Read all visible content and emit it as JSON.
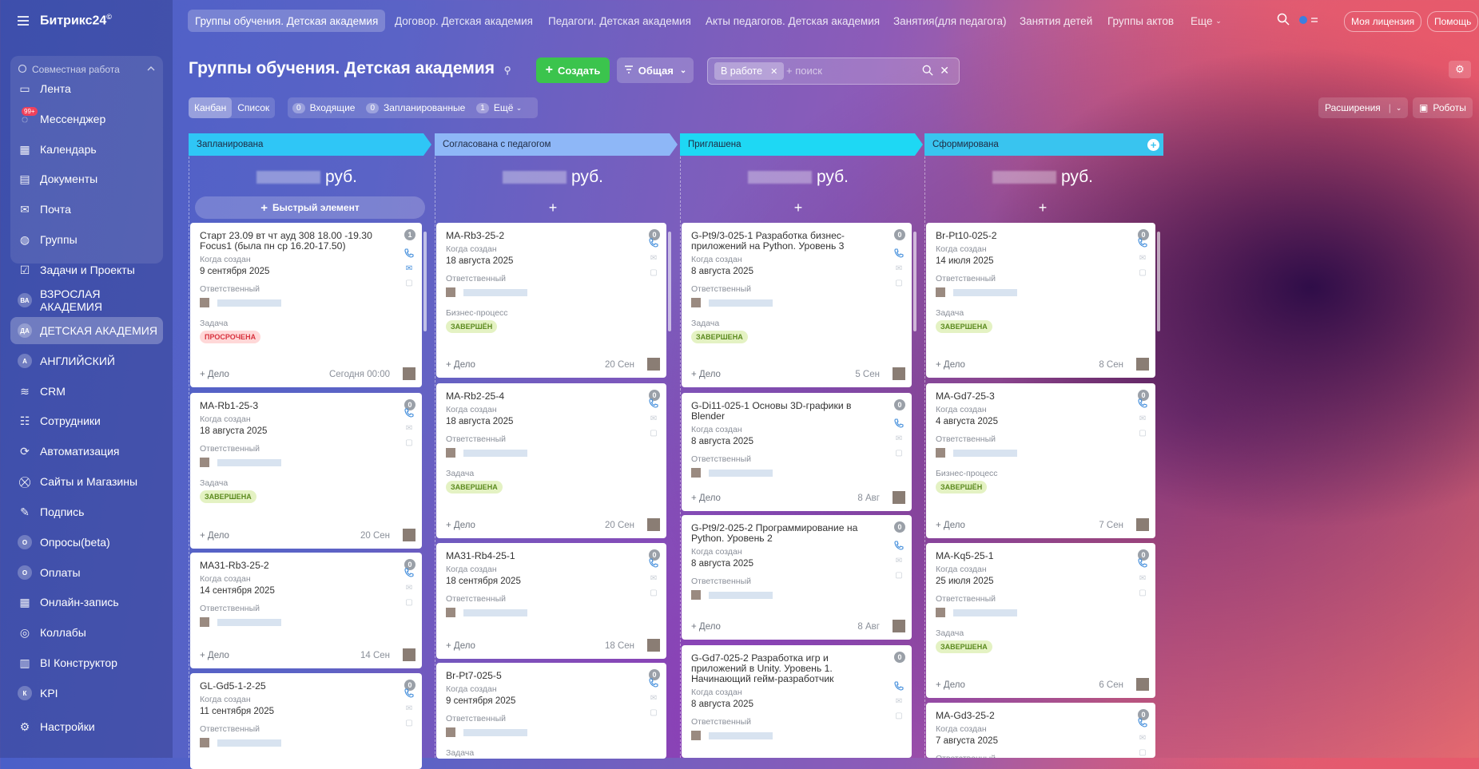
{
  "app": {
    "name": "Битрикс24",
    "mark": "©"
  },
  "sidebar": {
    "group_title": "Совместная работа",
    "items": [
      {
        "label": "Лента",
        "icon": "feed-icon"
      },
      {
        "label": "Мессенджер",
        "icon": "messenger-icon",
        "counter": "99+"
      },
      {
        "label": "Календарь",
        "icon": "calendar-icon"
      },
      {
        "label": "Документы",
        "icon": "documents-icon"
      },
      {
        "label": "Почта",
        "icon": "mail-icon"
      },
      {
        "label": "Группы",
        "icon": "groups-icon"
      },
      {
        "label": "Задачи и Проекты",
        "icon": "tasks-icon"
      },
      {
        "label": "ВЗРОСЛАЯ АКАДЕМИЯ",
        "icon": "letter-avatar-icon",
        "letters": "ВА"
      },
      {
        "label": "ДЕТСКАЯ АКАДЕМИЯ",
        "icon": "letter-avatar-icon",
        "letters": "ДА",
        "active": true
      },
      {
        "label": "АНГЛИЙСКИЙ",
        "icon": "letter-avatar-icon",
        "letters": "А"
      },
      {
        "label": "CRM",
        "icon": "crm-icon"
      },
      {
        "label": "Сотрудники",
        "icon": "employees-icon"
      },
      {
        "label": "Автоматизация",
        "icon": "automation-icon"
      },
      {
        "label": "Сайты и Магазины",
        "icon": "cart-icon"
      },
      {
        "label": "Подпись",
        "icon": "sign-icon"
      },
      {
        "label": "Опросы(beta)",
        "icon": "letter-avatar-icon",
        "letters": "О"
      },
      {
        "label": "Оплаты",
        "icon": "letter-avatar-icon",
        "letters": "О"
      },
      {
        "label": "Онлайн-запись",
        "icon": "booking-icon"
      },
      {
        "label": "Коллабы",
        "icon": "collab-icon"
      },
      {
        "label": "BI Конструктор",
        "icon": "bi-icon"
      },
      {
        "label": "KPI",
        "icon": "letter-avatar-icon",
        "letters": "К"
      },
      {
        "label": "Настройки",
        "icon": "settings-icon"
      }
    ]
  },
  "topbar": {
    "tabs": [
      "Группы обучения. Детская академия",
      "Договор. Детская академия",
      "Педагоги. Детская академия",
      "Акты педагогов. Детская академия",
      "Занятия(для педагога)",
      "Занятия детей",
      "Группы актов",
      "Еще"
    ],
    "license": "Моя лицензия",
    "help": "Помощь"
  },
  "page": {
    "title": "Группы обучения. Детская академия",
    "create_label": "Создать",
    "general_label": "Общая",
    "filter_chip": "В работе",
    "search_placeholder": "+ поиск"
  },
  "viewbar": {
    "kanban": "Канбан",
    "list": "Список",
    "incoming": {
      "count": "0",
      "label": "Входящие"
    },
    "planned": {
      "count": "0",
      "label": "Запланированные"
    },
    "more": {
      "count": "1",
      "label": "Ещё"
    },
    "extensions": "Расширения",
    "robots": "Роботы"
  },
  "columns": [
    {
      "title": "Запланирована",
      "color": "#2fc6f6",
      "sum_unit": "руб.",
      "quick_add": "Быстрый элемент"
    },
    {
      "title": "Согласована с педагогом",
      "color": "#8eb7f7",
      "sum_unit": "руб.",
      "quick_add": "+"
    },
    {
      "title": "Приглашена",
      "color": "#1ed8f4",
      "sum_unit": "руб.",
      "quick_add": "+"
    },
    {
      "title": "Сформирована",
      "color": "#39c4ef",
      "sum_unit": "руб.",
      "quick_add": "+"
    }
  ],
  "labels": {
    "created": "Когда создан",
    "responsible": "Ответственный",
    "deal": "+ Дело"
  },
  "cards": {
    "c1": [
      {
        "num": "1",
        "title": "Старт 23.09 вт чт ауд 308 18.00 -19.30 Focus1 (была пн ср 16.20-17.50)",
        "created": "9 сентября 2025",
        "extra_label": "Задача",
        "badge": "ПРОСРОЧЕНА",
        "badge_type": "red",
        "date": "Сегодня 00:00"
      },
      {
        "num": "0",
        "title": "MA-Rb1-25-3",
        "created": "18 августа 2025",
        "extra_label": "Задача",
        "badge": "ЗАВЕРШЕНА",
        "badge_type": "green",
        "date": "20 Сен"
      },
      {
        "num": "0",
        "title": "MA31-Rb3-25-2",
        "created": "14 сентября 2025",
        "date": "14 Сен"
      },
      {
        "num": "0",
        "title": "GL-Gd5-1-2-25",
        "created": "11 сентября 2025"
      }
    ],
    "c2": [
      {
        "num": "0",
        "title": "MA-Rb3-25-2",
        "created": "18 августа 2025",
        "extra_label": "Бизнес-процесс",
        "badge": "ЗАВЕРШЁН",
        "badge_type": "green",
        "date": "20 Сен"
      },
      {
        "num": "0",
        "title": "MA-Rb2-25-4",
        "created": "18 августа 2025",
        "extra_label": "Задача",
        "badge": "ЗАВЕРШЕНА",
        "badge_type": "green",
        "date": "20 Сен"
      },
      {
        "num": "0",
        "title": "MA31-Rb4-25-1",
        "created": "18 сентября 2025",
        "date": "18 Сен"
      },
      {
        "num": "0",
        "title": "Br-Pt7-025-5",
        "created": "9 сентября 2025",
        "extra_label": "Задача"
      }
    ],
    "c3": [
      {
        "num": "0",
        "title": "G-Pt9/3-025-1 Разработка бизнес-приложений на Python. Уровень 3",
        "created": "8 августа 2025",
        "extra_label": "Задача",
        "badge": "ЗАВЕРШЕНА",
        "badge_type": "green",
        "date": "5 Сен"
      },
      {
        "num": "0",
        "title": "G-Di11-025-1 Основы 3D-графики в Blender",
        "created": "8 августа 2025",
        "date": "8 Авг"
      },
      {
        "num": "0",
        "title": "G-Pt9/2-025-2 Программирование на Python. Уровень 2",
        "created": "8 августа 2025",
        "date": "8 Авг"
      },
      {
        "num": "0",
        "title": "G-Gd7-025-2 Разработка игр и приложений в Unity. Уровень 1. Начинающий гейм-разработчик",
        "created": "8 августа 2025"
      }
    ],
    "c4": [
      {
        "num": "0",
        "title": "Br-Pt10-025-2",
        "created": "14 июля 2025",
        "extra_label": "Задача",
        "badge": "ЗАВЕРШЕНА",
        "badge_type": "green",
        "date": "8 Сен"
      },
      {
        "num": "0",
        "title": "MA-Gd7-25-3",
        "created": "4 августа 2025",
        "extra_label": "Бизнес-процесс",
        "badge": "ЗАВЕРШЁН",
        "badge_type": "green",
        "date": "7 Сен"
      },
      {
        "num": "0",
        "title": "MA-Kq5-25-1",
        "created": "25 июля 2025",
        "extra_label": "Задача",
        "badge": "ЗАВЕРШЕНА",
        "badge_type": "green",
        "date": "6 Сен"
      },
      {
        "num": "0",
        "title": "MA-Gd3-25-2",
        "created": "7 августа 2025"
      }
    ]
  }
}
